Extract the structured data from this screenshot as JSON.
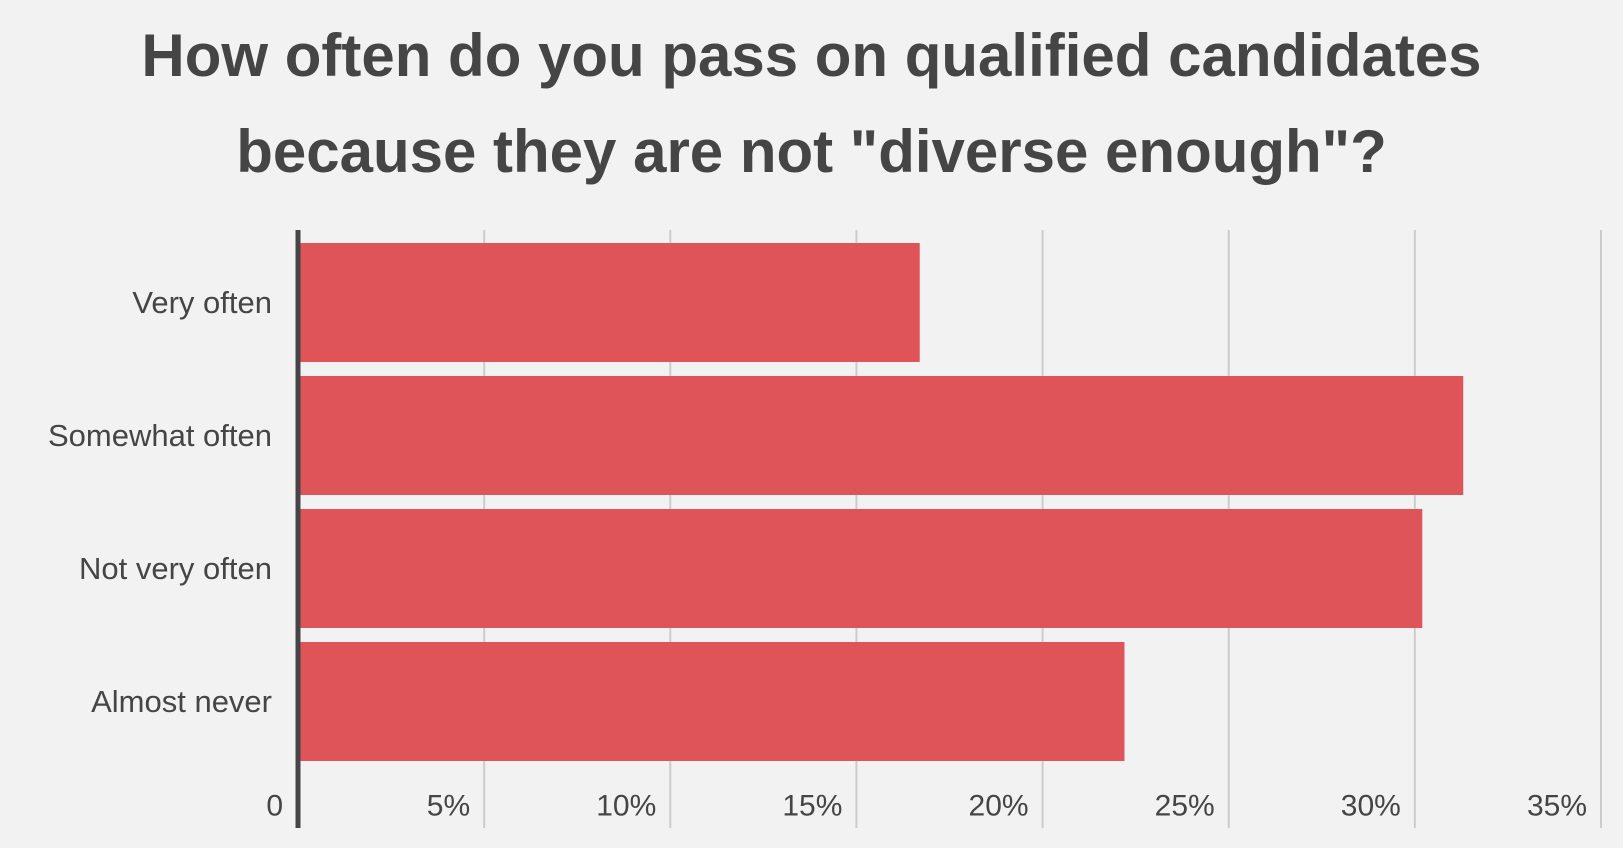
{
  "chart_data": {
    "type": "bar",
    "orientation": "horizontal",
    "title_lines": [
      "How often do you pass on qualified candidates",
      "because they are not \"diverse enough\"?"
    ],
    "categories": [
      "Very often",
      "Somewhat often",
      "Not very often",
      "Almost never"
    ],
    "values": [
      16.7,
      31.3,
      30.2,
      22.2
    ],
    "value_unit": "%",
    "xlim": [
      0,
      35
    ],
    "x_ticks": [
      0,
      5,
      10,
      15,
      20,
      25,
      30,
      35
    ],
    "x_tick_labels": [
      "0",
      "5%",
      "10%",
      "15%",
      "20%",
      "25%",
      "30%",
      "35%"
    ],
    "xlabel": "",
    "ylabel": "",
    "grid": "vertical",
    "legend": "none",
    "colors": {
      "bar": "#de5458",
      "grid": "#cccccc",
      "axis": "#454545",
      "text": "#454545",
      "background": "#f2f2f2"
    }
  }
}
